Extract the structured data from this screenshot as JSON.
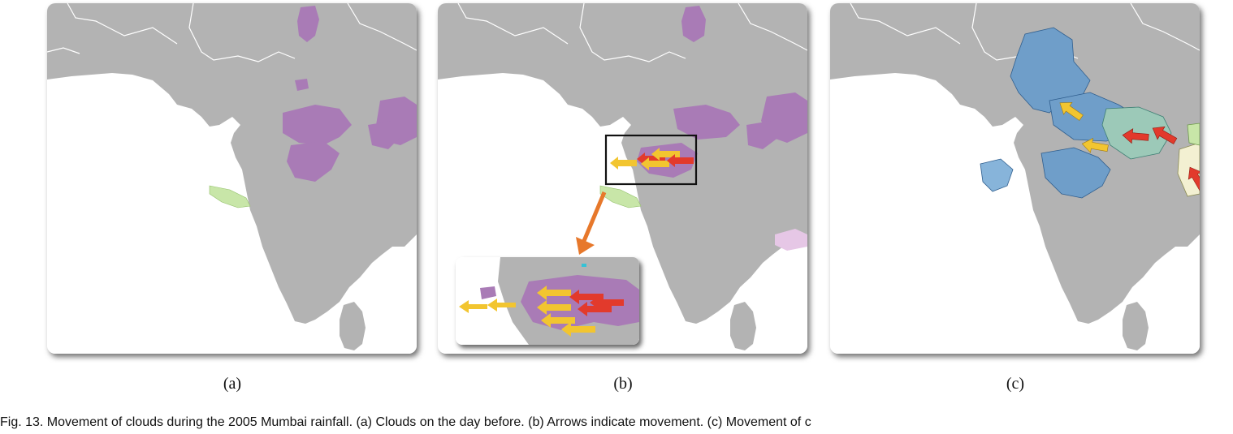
{
  "figure": {
    "panels": [
      {
        "id": "a",
        "label": "(a)"
      },
      {
        "id": "b",
        "label": "(b)"
      },
      {
        "id": "c",
        "label": "(c)"
      }
    ],
    "caption": "Fig. 13. Movement of clouds during the 2005 Mumbai rainfall. (a) Clouds on the day before. (b) Arrows indicate movement. (c) Movement of c"
  },
  "colors": {
    "land": "#b3b3b3",
    "ocean": "#ffffff",
    "borders": "#ffffff",
    "cloud_purple": "#a97bb6",
    "cloud_green": "#c8e6a8",
    "cloud_blue": "#6f9ec9",
    "cloud_teal": "#9cc9b8",
    "arrow_yellow": "#f2c530",
    "arrow_red": "#e23a2c",
    "zoom_box": "#111111",
    "callout_arrow": "#e7782b"
  },
  "annotations": {
    "zoom_box": "black rectangle around Mumbai cloud cluster",
    "callout": "orange arrow pointing to magnified inset"
  }
}
